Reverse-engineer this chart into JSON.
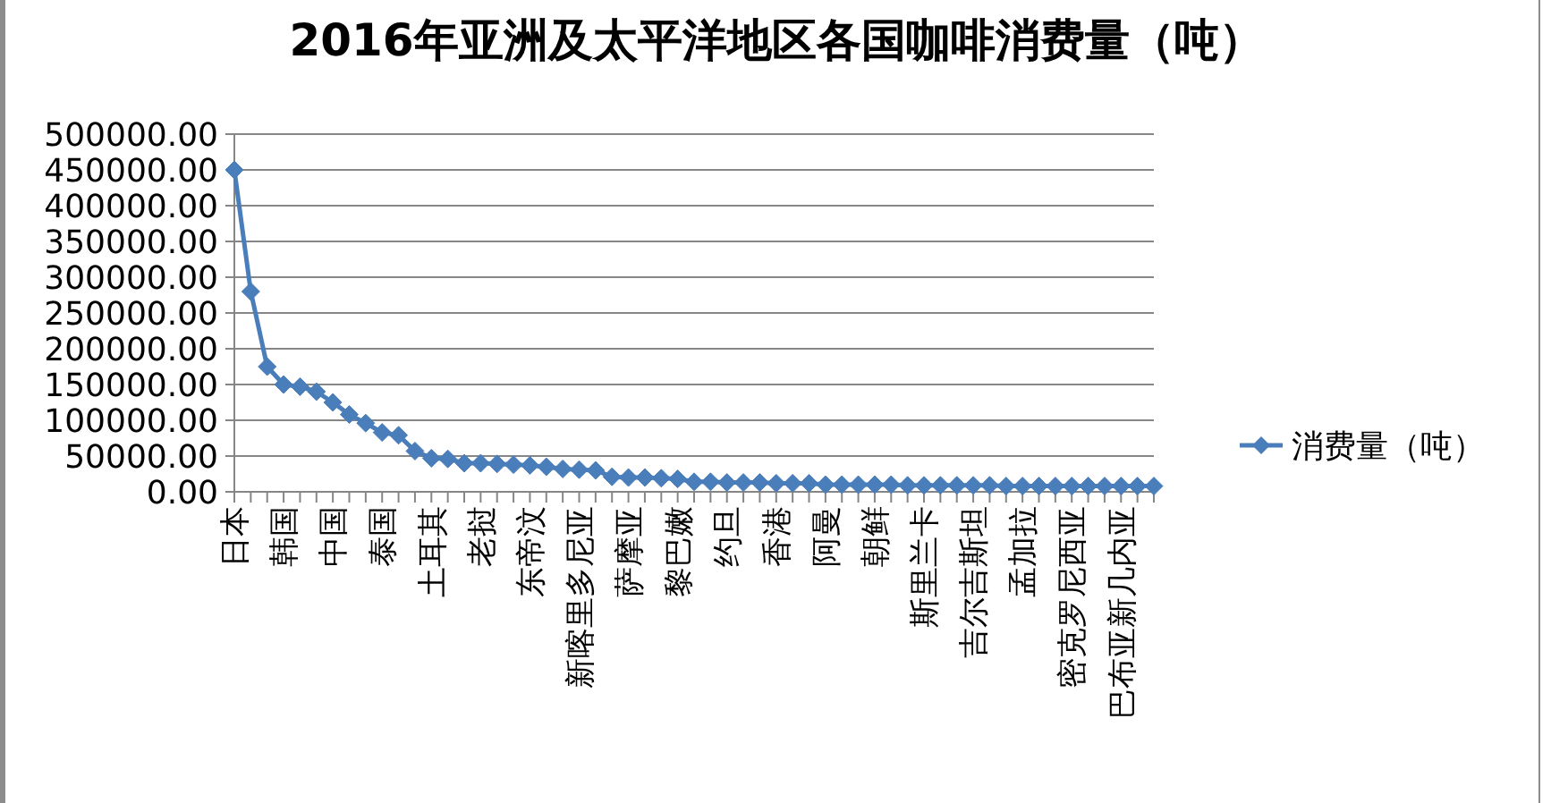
{
  "chart_data": {
    "type": "line",
    "title": "2016年亚洲及太平洋地区各国咖啡消费量（吨）",
    "categories": [
      "日本",
      null,
      null,
      "韩国",
      null,
      null,
      "中国",
      null,
      null,
      "泰国",
      null,
      null,
      "土耳其",
      null,
      null,
      "老挝",
      null,
      null,
      "东帝汶",
      null,
      null,
      "新喀里多尼亚",
      null,
      null,
      "萨摩亚",
      null,
      null,
      "黎巴嫩",
      null,
      null,
      "约旦",
      null,
      null,
      "香港",
      null,
      null,
      "阿曼",
      null,
      null,
      "朝鲜",
      null,
      null,
      "斯里兰卡",
      null,
      null,
      "吉尔吉斯坦",
      null,
      null,
      "孟加拉",
      null,
      null,
      "密克罗尼西亚",
      null,
      null,
      "巴布亚新几内亚",
      null,
      null
    ],
    "series": [
      {
        "name": "消费量（吨）",
        "color": "#4a7ebb",
        "values": [
          450000,
          280000,
          175000,
          150000,
          147000,
          140000,
          125000,
          108000,
          96000,
          83000,
          79000,
          57000,
          47000,
          46000,
          40000,
          40000,
          39000,
          38000,
          37000,
          35000,
          32000,
          31000,
          30000,
          21000,
          20000,
          20000,
          19000,
          18000,
          14000,
          14000,
          13000,
          13000,
          13000,
          12000,
          12000,
          12000,
          10000,
          10000,
          10000,
          10000,
          10000,
          9000,
          9000,
          9000,
          9000,
          9000,
          9000,
          8000,
          8000,
          8000,
          8000,
          8000,
          8000,
          8000,
          8000,
          8000,
          8000
        ]
      }
    ],
    "ylim": [
      0,
      500000
    ],
    "yticks": [
      {
        "value": 0,
        "label": "0.00"
      },
      {
        "value": 50000,
        "label": "50000.00"
      },
      {
        "value": 100000,
        "label": "100000.00"
      },
      {
        "value": 150000,
        "label": "150000.00"
      },
      {
        "value": 200000,
        "label": "200000.00"
      },
      {
        "value": 250000,
        "label": "250000.00"
      },
      {
        "value": 300000,
        "label": "300000.00"
      },
      {
        "value": 350000,
        "label": "350000.00"
      },
      {
        "value": 400000,
        "label": "400000.00"
      },
      {
        "value": 450000,
        "label": "450000.00"
      },
      {
        "value": 500000,
        "label": "500000.00"
      }
    ],
    "grid": "y",
    "legend": "right",
    "marker": "diamond",
    "line_style": "solid"
  }
}
